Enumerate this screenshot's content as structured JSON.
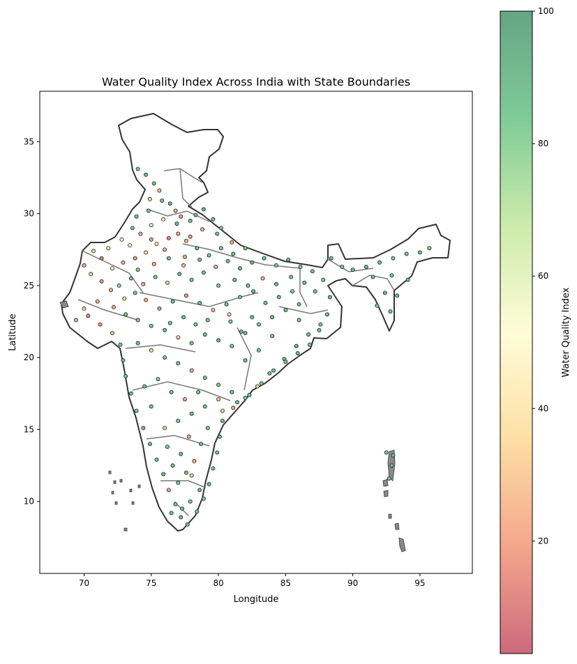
{
  "chart_data": {
    "type": "scatter",
    "title": "Water Quality Index Across India with State Boundaries",
    "xlabel": "Longitude",
    "ylabel": "Latitude",
    "xlim": [
      66.7,
      98.9
    ],
    "ylim": [
      5.0,
      38.5
    ],
    "x_ticks": [
      70,
      75,
      80,
      85,
      90,
      95
    ],
    "y_ticks": [
      10,
      15,
      20,
      25,
      30,
      35
    ],
    "grid": false,
    "colorbar": {
      "label": "Water Quality Index",
      "range": [
        3,
        100
      ],
      "ticks": [
        20,
        40,
        60,
        80,
        100
      ],
      "colormap": [
        "#cc6a7c",
        "#f4a68c",
        "#fddfa4",
        "#fffdd8",
        "#ccebaa",
        "#7fcb98",
        "#66a584"
      ]
    },
    "colors": {
      "boundary": "#333333",
      "state_boundary": "#777777",
      "island_fill": "#8a8a8a",
      "point_edge": "#1a2a1a"
    },
    "points": [
      [
        74.0,
        33.1,
        85
      ],
      [
        74.6,
        32.7,
        92
      ],
      [
        75.2,
        32.1,
        90
      ],
      [
        75.6,
        31.6,
        25
      ],
      [
        74.9,
        31.0,
        30
      ],
      [
        75.8,
        30.9,
        88
      ],
      [
        76.4,
        30.7,
        95
      ],
      [
        76.8,
        30.2,
        20
      ],
      [
        77.2,
        29.8,
        15
      ],
      [
        77.9,
        29.5,
        90
      ],
      [
        78.3,
        29.9,
        92
      ],
      [
        78.9,
        30.3,
        96
      ],
      [
        79.6,
        29.6,
        90
      ],
      [
        80.2,
        29.0,
        85
      ],
      [
        77.0,
        28.6,
        18
      ],
      [
        77.6,
        28.1,
        22
      ],
      [
        76.3,
        28.3,
        12
      ],
      [
        75.4,
        27.9,
        40
      ],
      [
        74.6,
        27.3,
        35
      ],
      [
        73.8,
        26.9,
        15
      ],
      [
        72.9,
        26.6,
        20
      ],
      [
        72.1,
        26.2,
        55
      ],
      [
        71.3,
        26.9,
        10
      ],
      [
        70.7,
        27.4,
        30
      ],
      [
        73.4,
        27.8,
        45
      ],
      [
        74.2,
        28.6,
        20
      ],
      [
        75.0,
        29.2,
        60
      ],
      [
        73.9,
        29.8,
        90
      ],
      [
        74.8,
        30.2,
        85
      ],
      [
        72.6,
        25.0,
        80
      ],
      [
        73.5,
        25.5,
        88
      ],
      [
        74.4,
        25.1,
        20
      ],
      [
        75.3,
        25.6,
        85
      ],
      [
        76.2,
        25.2,
        30
      ],
      [
        77.1,
        25.8,
        90
      ],
      [
        78.0,
        25.4,
        85
      ],
      [
        78.9,
        25.9,
        90
      ],
      [
        79.8,
        26.3,
        20
      ],
      [
        80.7,
        26.7,
        88
      ],
      [
        81.6,
        26.2,
        92
      ],
      [
        82.5,
        26.6,
        95
      ],
      [
        83.4,
        26.9,
        90
      ],
      [
        84.3,
        26.4,
        85
      ],
      [
        85.2,
        26.8,
        92
      ],
      [
        86.1,
        26.3,
        88
      ],
      [
        87.0,
        26.0,
        90
      ],
      [
        87.8,
        25.4,
        85
      ],
      [
        88.3,
        24.2,
        92
      ],
      [
        88.1,
        23.0,
        90
      ],
      [
        87.6,
        22.3,
        85
      ],
      [
        86.7,
        21.6,
        90
      ],
      [
        85.8,
        20.8,
        95
      ],
      [
        84.9,
        19.9,
        92
      ],
      [
        83.8,
        18.9,
        88
      ],
      [
        82.9,
        18.0,
        30
      ],
      [
        82.0,
        17.2,
        85
      ],
      [
        81.1,
        16.5,
        20
      ],
      [
        80.3,
        15.6,
        90
      ],
      [
        80.1,
        14.5,
        92
      ],
      [
        79.9,
        13.4,
        88
      ],
      [
        79.6,
        12.3,
        85
      ],
      [
        79.3,
        11.2,
        90
      ],
      [
        78.9,
        10.2,
        85
      ],
      [
        78.4,
        9.3,
        88
      ],
      [
        77.7,
        8.4,
        90
      ],
      [
        77.2,
        8.9,
        92
      ],
      [
        76.8,
        9.8,
        85
      ],
      [
        76.3,
        10.8,
        20
      ],
      [
        75.9,
        11.9,
        90
      ],
      [
        75.4,
        12.9,
        88
      ],
      [
        74.9,
        14.0,
        92
      ],
      [
        74.4,
        15.1,
        90
      ],
      [
        73.9,
        16.3,
        85
      ],
      [
        73.5,
        17.5,
        90
      ],
      [
        73.1,
        18.7,
        88
      ],
      [
        72.9,
        19.8,
        92
      ],
      [
        72.7,
        20.9,
        85
      ],
      [
        72.1,
        21.7,
        25
      ],
      [
        71.2,
        22.3,
        15
      ],
      [
        70.3,
        22.9,
        10
      ],
      [
        69.4,
        22.6,
        20
      ],
      [
        70.0,
        23.4,
        30
      ],
      [
        71.0,
        23.9,
        20
      ],
      [
        72.2,
        23.5,
        18
      ],
      [
        73.1,
        23.0,
        90
      ],
      [
        74.0,
        22.6,
        88
      ],
      [
        75.0,
        22.2,
        85
      ],
      [
        76.0,
        21.9,
        90
      ],
      [
        77.0,
        21.4,
        30
      ],
      [
        78.0,
        21.0,
        85
      ],
      [
        79.0,
        21.6,
        90
      ],
      [
        80.0,
        21.2,
        92
      ],
      [
        81.0,
        20.8,
        88
      ],
      [
        82.0,
        21.7,
        90
      ],
      [
        83.0,
        22.3,
        85
      ],
      [
        84.0,
        22.8,
        92
      ],
      [
        85.0,
        23.3,
        90
      ],
      [
        86.0,
        23.7,
        88
      ],
      [
        85.5,
        24.6,
        85
      ],
      [
        84.5,
        24.2,
        90
      ],
      [
        83.5,
        23.8,
        88
      ],
      [
        82.6,
        24.6,
        92
      ],
      [
        81.6,
        24.2,
        85
      ],
      [
        80.6,
        23.7,
        90
      ],
      [
        79.6,
        23.3,
        25
      ],
      [
        78.6,
        23.8,
        88
      ],
      [
        77.6,
        24.3,
        15
      ],
      [
        76.6,
        23.9,
        90
      ],
      [
        75.6,
        23.4,
        85
      ],
      [
        74.6,
        24.0,
        20
      ],
      [
        73.8,
        24.5,
        88
      ],
      [
        73.0,
        24.1,
        35
      ],
      [
        72.0,
        24.7,
        20
      ],
      [
        71.3,
        25.3,
        15
      ],
      [
        70.5,
        25.8,
        30
      ],
      [
        70.0,
        26.4,
        20
      ],
      [
        71.8,
        27.6,
        40
      ],
      [
        72.8,
        28.2,
        55
      ],
      [
        73.6,
        29.0,
        85
      ],
      [
        76.0,
        27.5,
        20
      ],
      [
        77.5,
        27.0,
        18
      ],
      [
        78.4,
        27.6,
        90
      ],
      [
        79.3,
        27.1,
        85
      ],
      [
        80.2,
        27.6,
        88
      ],
      [
        81.1,
        27.2,
        90
      ],
      [
        82.0,
        27.6,
        85
      ],
      [
        81.0,
        28.0,
        20
      ],
      [
        79.9,
        28.6,
        88
      ],
      [
        78.8,
        28.9,
        20
      ],
      [
        77.9,
        28.4,
        15
      ],
      [
        76.9,
        29.3,
        90
      ],
      [
        75.9,
        29.6,
        40
      ],
      [
        75.0,
        28.2,
        15
      ],
      [
        74.0,
        26.1,
        85
      ],
      [
        75.2,
        26.5,
        20
      ],
      [
        76.3,
        26.9,
        88
      ],
      [
        77.4,
        26.4,
        25
      ],
      [
        78.6,
        26.8,
        90
      ],
      [
        80.0,
        25.0,
        85
      ],
      [
        81.2,
        25.4,
        90
      ],
      [
        82.2,
        25.0,
        88
      ],
      [
        83.3,
        25.5,
        20
      ],
      [
        84.3,
        25.1,
        92
      ],
      [
        85.4,
        25.6,
        85
      ],
      [
        86.4,
        25.2,
        90
      ],
      [
        87.2,
        24.6,
        88
      ],
      [
        74.0,
        21.0,
        88
      ],
      [
        75.0,
        20.5,
        30
      ],
      [
        76.0,
        20.0,
        85
      ],
      [
        77.0,
        19.6,
        90
      ],
      [
        78.0,
        19.1,
        20
      ],
      [
        79.0,
        18.6,
        88
      ],
      [
        80.0,
        18.1,
        85
      ],
      [
        81.0,
        17.6,
        90
      ],
      [
        80.0,
        17.1,
        25
      ],
      [
        79.0,
        16.6,
        88
      ],
      [
        78.0,
        16.1,
        90
      ],
      [
        77.0,
        15.6,
        85
      ],
      [
        76.0,
        15.1,
        30
      ],
      [
        75.0,
        16.6,
        88
      ],
      [
        74.5,
        18.0,
        90
      ],
      [
        75.5,
        18.5,
        85
      ],
      [
        76.5,
        17.6,
        90
      ],
      [
        77.5,
        17.1,
        20
      ],
      [
        78.5,
        17.6,
        88
      ],
      [
        76.2,
        13.8,
        85
      ],
      [
        77.2,
        13.3,
        90
      ],
      [
        78.2,
        12.8,
        20
      ],
      [
        77.6,
        12.0,
        88
      ],
      [
        76.6,
        12.5,
        92
      ],
      [
        77.0,
        11.3,
        85
      ],
      [
        78.0,
        11.8,
        30
      ],
      [
        78.6,
        10.8,
        90
      ],
      [
        77.9,
        10.0,
        85
      ],
      [
        77.3,
        9.5,
        90
      ],
      [
        76.5,
        9.2,
        88
      ],
      [
        77.8,
        14.5,
        20
      ],
      [
        78.7,
        14.0,
        90
      ],
      [
        79.2,
        15.1,
        85
      ],
      [
        80.3,
        16.3,
        30
      ],
      [
        81.4,
        16.9,
        90
      ],
      [
        82.3,
        17.4,
        88
      ],
      [
        83.2,
        18.2,
        85
      ],
      [
        84.1,
        19.1,
        90
      ],
      [
        85.0,
        19.7,
        88
      ],
      [
        85.9,
        20.3,
        92
      ],
      [
        86.8,
        20.9,
        85
      ],
      [
        87.5,
        21.9,
        90
      ],
      [
        84.0,
        21.5,
        88
      ],
      [
        83.0,
        20.5,
        85
      ],
      [
        82.0,
        19.8,
        90
      ],
      [
        86.0,
        22.6,
        88
      ],
      [
        88.4,
        26.9,
        90
      ],
      [
        89.2,
        26.3,
        85
      ],
      [
        90.0,
        26.1,
        88
      ],
      [
        91.0,
        26.3,
        92
      ],
      [
        92.0,
        26.6,
        90
      ],
      [
        93.0,
        26.9,
        85
      ],
      [
        94.0,
        27.2,
        88
      ],
      [
        95.0,
        27.3,
        90
      ],
      [
        95.7,
        27.6,
        85
      ],
      [
        92.9,
        25.7,
        88
      ],
      [
        92.4,
        24.5,
        90
      ],
      [
        91.8,
        23.6,
        85
      ],
      [
        92.8,
        23.2,
        88
      ],
      [
        93.3,
        24.3,
        90
      ],
      [
        94.1,
        25.4,
        92
      ],
      [
        91.5,
        25.6,
        88
      ],
      [
        92.9,
        12.5,
        88
      ],
      [
        92.7,
        11.6,
        85
      ],
      [
        93.0,
        13.2,
        90
      ],
      [
        92.5,
        13.4,
        88
      ],
      [
        80.9,
        22.5,
        85
      ],
      [
        81.7,
        21.8,
        90
      ],
      [
        82.5,
        22.8,
        88
      ],
      [
        80.8,
        23.0,
        30
      ],
      [
        79.2,
        22.6,
        88
      ],
      [
        78.3,
        22.3,
        85
      ],
      [
        77.4,
        22.8,
        90
      ],
      [
        76.4,
        22.4,
        88
      ]
    ],
    "annotations": []
  }
}
